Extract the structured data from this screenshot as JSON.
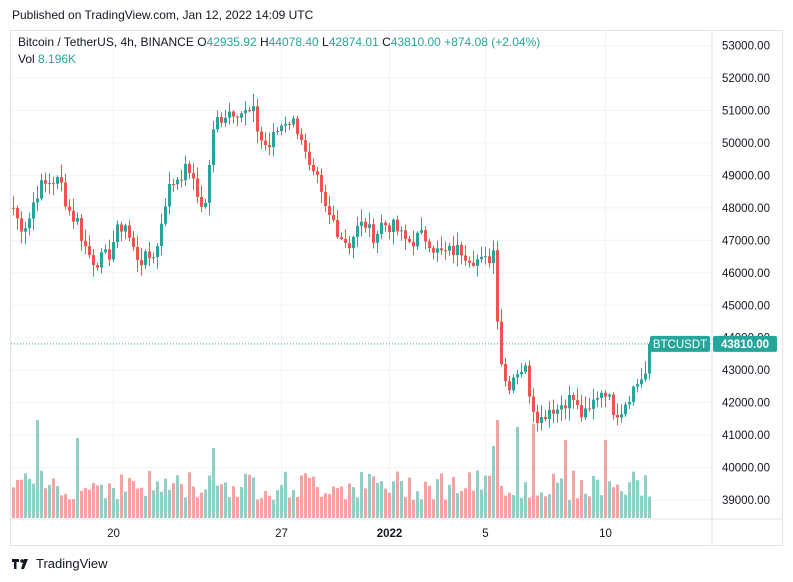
{
  "published": "Published on TradingView.com, Jan 12, 2022 14:09 UTC",
  "legend": {
    "symbol": "Bitcoin / TetherUS, 4h, BINANCE",
    "o_label": "O",
    "o": "42935.92",
    "h_label": "H",
    "h": "44078.40",
    "l_label": "L",
    "l": "42874.01",
    "c_label": "C",
    "c": "43810.00",
    "change": "+874.08 (+2.04%)",
    "vol_label": "Vol",
    "vol": "8.196K"
  },
  "price_tag": {
    "symbol": "BTCUSDT",
    "price": "43810.00"
  },
  "footer": {
    "brand": "TradingView"
  },
  "colors": {
    "up": "#26a69a",
    "down": "#ef5350",
    "vol_up": "#8fcfc8",
    "vol_down": "#f3a3a1",
    "grid": "#f0f3fa",
    "tag": "#26a69a"
  },
  "chart_data": {
    "type": "candlestick",
    "y_ticks": [
      "53000.00",
      "52000.00",
      "51000.00",
      "50000.00",
      "49000.00",
      "48000.00",
      "47000.00",
      "46000.00",
      "45000.00",
      "44000.00",
      "43000.00",
      "42000.00",
      "41000.00",
      "40000.00",
      "39000.00"
    ],
    "ylim": [
      38500,
      53300
    ],
    "x_ticks": [
      {
        "label": "20",
        "index": 25,
        "bold": false
      },
      {
        "label": "27",
        "index": 67,
        "bold": false
      },
      {
        "label": "2022",
        "index": 94,
        "bold": true
      },
      {
        "label": "5",
        "index": 118,
        "bold": false
      },
      {
        "label": "10",
        "index": 148,
        "bold": false
      }
    ],
    "last_close": 43810,
    "ohlc_anchor": [
      [
        0,
        48000,
        46700
      ],
      [
        4,
        47700,
        48700
      ],
      [
        8,
        48700,
        49200
      ],
      [
        12,
        48700,
        47900
      ],
      [
        16,
        47600,
        46900
      ],
      [
        20,
        46400,
        46100
      ],
      [
        24,
        46600,
        47300
      ],
      [
        28,
        47500,
        46700
      ],
      [
        32,
        46400,
        46000
      ],
      [
        36,
        46800,
        48200
      ],
      [
        40,
        48800,
        49000
      ],
      [
        44,
        49200,
        48200
      ],
      [
        48,
        48100,
        50900
      ],
      [
        52,
        50800,
        51100
      ],
      [
        56,
        51000,
        50900
      ],
      [
        60,
        50900,
        49900
      ],
      [
        64,
        49900,
        50200
      ],
      [
        68,
        50700,
        51300
      ],
      [
        72,
        50200,
        49000
      ],
      [
        76,
        48800,
        47900
      ],
      [
        80,
        47600,
        47200
      ],
      [
        84,
        46900,
        47400
      ],
      [
        88,
        47500,
        46400
      ],
      [
        92,
        47500,
        47700
      ],
      [
        96,
        47300,
        46800
      ],
      [
        100,
        47000,
        47400
      ],
      [
        104,
        47000,
        46500
      ],
      [
        108,
        46600,
        46700
      ],
      [
        112,
        46700,
        46600
      ],
      [
        116,
        46400,
        45700
      ],
      [
        120,
        46700,
        42200
      ],
      [
        124,
        42600,
        43300
      ],
      [
        128,
        43000,
        41800
      ],
      [
        132,
        41500,
        42100
      ],
      [
        136,
        41800,
        42200
      ],
      [
        140,
        42100,
        41200
      ],
      [
        144,
        41700,
        42400
      ],
      [
        148,
        42400,
        41500
      ],
      [
        152,
        41800,
        42000
      ],
      [
        156,
        42600,
        42900
      ],
      [
        159,
        42900,
        43810
      ]
    ]
  }
}
